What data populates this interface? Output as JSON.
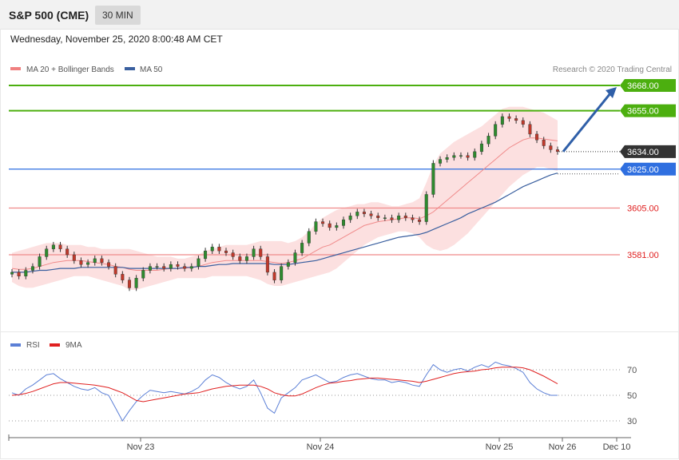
{
  "header": {
    "title": "S&P 500 (CME)",
    "timeframe": "30 MIN"
  },
  "datetime": "Wednesday, November 25, 2020 8:00:48 AM CET",
  "legend": {
    "ma20_label": "MA 20 + Bollinger Bands",
    "ma50_label": "MA 50",
    "credit": "Research © 2020 Trading Central",
    "ma20_color": "#f08080",
    "ma50_color": "#3a5f9f"
  },
  "rsi_legend": {
    "rsi_label": "RSI",
    "ma_label": "9MA",
    "rsi_color": "#5b7fd6",
    "ma_color": "#e02020"
  },
  "x_axis": {
    "ticks": [
      "Nov 23",
      "Nov 24",
      "Nov 25",
      "Nov 26",
      "Dec 10"
    ]
  },
  "colors": {
    "up": "#2e8b2e",
    "down": "#c0392b",
    "target": "#4caf0f",
    "pivot": "#2f6fe0",
    "support": "#e02020",
    "current": "#333333",
    "arrow": "#2f5fa8"
  },
  "chart_data": [
    {
      "type": "candlestick",
      "title": "S&P 500 (CME)",
      "timeframe": "30 MIN",
      "ylim": [
        3560,
        3680
      ],
      "levels": [
        {
          "label": "3668.00",
          "value": 3668,
          "kind": "target"
        },
        {
          "label": "3655.00",
          "value": 3655,
          "kind": "target"
        },
        {
          "label": "3634.00",
          "value": 3634,
          "kind": "current"
        },
        {
          "label": "3625.00",
          "value": 3625,
          "kind": "pivot"
        },
        {
          "label": "3605.00",
          "value": 3605,
          "kind": "support"
        },
        {
          "label": "3581.00",
          "value": 3581,
          "kind": "support"
        }
      ],
      "close": [
        3572,
        3570,
        3573,
        3575,
        3580,
        3584,
        3586,
        3584,
        3581,
        3578,
        3576,
        3577,
        3579,
        3577,
        3575,
        3571,
        3568,
        3564,
        3569,
        3573,
        3575,
        3575,
        3574,
        3576,
        3575,
        3574,
        3575,
        3579,
        3583,
        3585,
        3583,
        3582,
        3580,
        3578,
        3580,
        3584,
        3580,
        3572,
        3568,
        3575,
        3577,
        3582,
        3587,
        3593,
        3598,
        3597,
        3595,
        3596,
        3599,
        3601,
        3603,
        3602,
        3601,
        3600,
        3600,
        3599,
        3601,
        3600,
        3599,
        3598,
        3612,
        3628,
        3630,
        3631,
        3632,
        3632,
        3631,
        3634,
        3638,
        3642,
        3648,
        3652,
        3651,
        3650,
        3648,
        3643,
        3640,
        3637,
        3635,
        3634
      ],
      "ma20": [
        3574,
        3573.5,
        3573.5,
        3574,
        3575,
        3576,
        3577,
        3577.5,
        3578,
        3578,
        3578,
        3577.5,
        3577,
        3576.5,
        3576,
        3575,
        3574.5,
        3573.5,
        3573,
        3573,
        3573,
        3573,
        3573.5,
        3574,
        3574,
        3574,
        3574.5,
        3575,
        3576,
        3577,
        3577.5,
        3578,
        3578,
        3578,
        3578,
        3578,
        3578,
        3577.5,
        3577,
        3576.5,
        3577,
        3578,
        3579,
        3581,
        3583,
        3585,
        3586,
        3588,
        3590,
        3592,
        3594,
        3596,
        3597,
        3598,
        3598.5,
        3599,
        3599.5,
        3600,
        3600,
        3599.5,
        3601,
        3603,
        3606,
        3609,
        3612,
        3615,
        3618,
        3621,
        3624,
        3627,
        3630,
        3633,
        3636,
        3638,
        3640,
        3641,
        3641,
        3640.5,
        3640,
        3639.5
      ],
      "ma50": [
        3572,
        3572,
        3572,
        3572.5,
        3573,
        3573,
        3573.5,
        3574,
        3574,
        3574,
        3574.5,
        3574.5,
        3574.5,
        3574.5,
        3574.5,
        3574.5,
        3574.5,
        3574,
        3574,
        3574,
        3574,
        3574,
        3574,
        3574,
        3574,
        3574.5,
        3574.5,
        3575,
        3575,
        3575.5,
        3576,
        3576,
        3576.5,
        3576.5,
        3576.5,
        3576.5,
        3576.5,
        3576.5,
        3576,
        3576,
        3576,
        3576.5,
        3577,
        3577.5,
        3578,
        3579,
        3580,
        3581,
        3582,
        3583,
        3584,
        3585,
        3586,
        3587,
        3588,
        3589,
        3590,
        3590.5,
        3591,
        3591.5,
        3592.5,
        3594,
        3595.5,
        3597,
        3598.5,
        3600,
        3602,
        3603.5,
        3605,
        3606.5,
        3608,
        3610,
        3612,
        3614,
        3616,
        3617.5,
        3619,
        3620.5,
        3622,
        3623
      ],
      "bb_upper": [
        3582,
        3583,
        3584,
        3585,
        3586,
        3587,
        3587,
        3587,
        3586,
        3586,
        3586,
        3585,
        3585,
        3584,
        3584,
        3584,
        3584,
        3584,
        3583,
        3582,
        3581,
        3580,
        3580,
        3580,
        3579,
        3579,
        3580,
        3581,
        3583,
        3584,
        3585,
        3586,
        3586,
        3586,
        3586,
        3587,
        3588,
        3588,
        3588,
        3588,
        3587,
        3588,
        3590,
        3593,
        3597,
        3600,
        3602,
        3604,
        3605,
        3606,
        3607,
        3607,
        3608,
        3608,
        3607,
        3606,
        3606,
        3607,
        3608,
        3610,
        3618,
        3627,
        3633,
        3636,
        3639,
        3641,
        3643,
        3645,
        3647,
        3650,
        3653,
        3656,
        3657,
        3657,
        3657,
        3656,
        3655,
        3654,
        3652,
        3650
      ],
      "bb_lower": [
        3567,
        3565,
        3564,
        3564,
        3565,
        3566,
        3567,
        3568,
        3569,
        3570,
        3570,
        3570,
        3569,
        3568,
        3567,
        3566,
        3565,
        3563,
        3563,
        3564,
        3565,
        3566,
        3567,
        3568,
        3569,
        3569,
        3569,
        3569,
        3569,
        3570,
        3570,
        3570,
        3570,
        3570,
        3570,
        3569,
        3568,
        3566,
        3565,
        3565,
        3566,
        3567,
        3568,
        3569,
        3570,
        3571,
        3572,
        3574,
        3577,
        3580,
        3583,
        3586,
        3588,
        3590,
        3591,
        3592,
        3593,
        3593,
        3592,
        3590,
        3586,
        3584,
        3583,
        3584,
        3586,
        3589,
        3592,
        3596,
        3600,
        3604,
        3608,
        3612,
        3616,
        3619,
        3622,
        3624,
        3626,
        3626,
        3625,
        3624
      ]
    },
    {
      "type": "line",
      "title": "RSI",
      "ylim": [
        20,
        80
      ],
      "reference_lines": [
        30,
        50,
        70
      ],
      "series": [
        {
          "name": "RSI",
          "values": [
            52,
            50,
            55,
            58,
            62,
            66,
            67,
            63,
            60,
            57,
            55,
            54,
            56,
            52,
            50,
            40,
            30,
            38,
            45,
            50,
            54,
            53,
            52,
            53,
            52,
            51,
            53,
            56,
            62,
            66,
            64,
            60,
            57,
            55,
            57,
            62,
            52,
            40,
            36,
            48,
            52,
            56,
            62,
            64,
            66,
            63,
            60,
            61,
            64,
            66,
            67,
            65,
            63,
            62,
            62,
            60,
            61,
            60,
            58,
            57,
            66,
            74,
            70,
            68,
            70,
            71,
            69,
            72,
            74,
            72,
            76,
            74,
            73,
            71,
            68,
            60,
            55,
            52,
            50,
            50
          ]
        },
        {
          "name": "9MA",
          "values": [
            50,
            50.5,
            51.5,
            53,
            55,
            57,
            59,
            60,
            60,
            59.5,
            59,
            58.5,
            58,
            57,
            56,
            54,
            52,
            49,
            46,
            45,
            46,
            47,
            48,
            49,
            50,
            51,
            51.5,
            52,
            53.5,
            55,
            56,
            57,
            57.5,
            58,
            58,
            58,
            57,
            55,
            52,
            50.5,
            49.5,
            49.5,
            51,
            53.5,
            56,
            58,
            59.5,
            60,
            61,
            61.5,
            62.5,
            63,
            63.5,
            63.5,
            63,
            62.5,
            62,
            61.5,
            61,
            60,
            61,
            62.5,
            64,
            65.5,
            67,
            68,
            68.5,
            69,
            70,
            70.5,
            71.5,
            72,
            72,
            72,
            71.5,
            70,
            67.5,
            65,
            62,
            59
          ]
        }
      ]
    }
  ]
}
